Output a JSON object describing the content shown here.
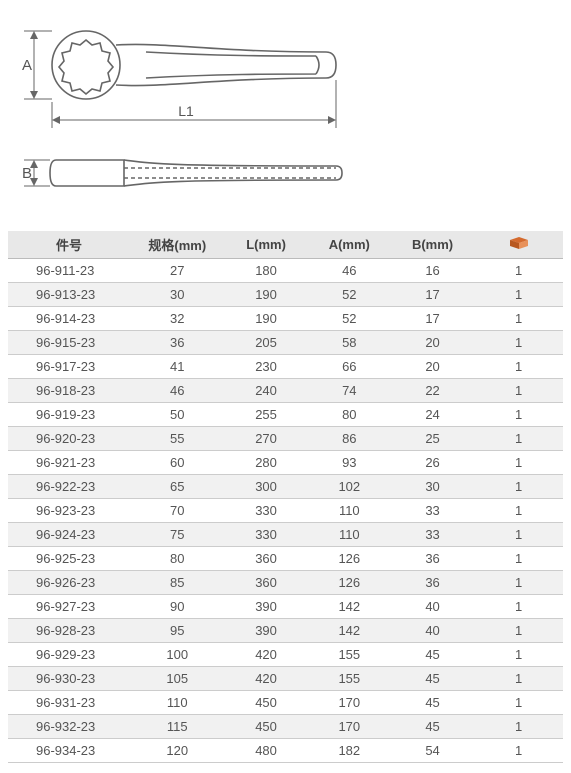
{
  "diagram": {
    "label_A": "A",
    "label_B": "B",
    "label_L1": "L1",
    "stroke": "#666666",
    "arrow": "#666666",
    "dash": "4,3"
  },
  "table": {
    "headers": {
      "part": "件号",
      "spec": "规格(mm)",
      "l": "L(mm)",
      "a": "A(mm)",
      "b": "B(mm)"
    },
    "pkg_icon_color": "#d46a2e",
    "rows": [
      {
        "part": "96-911-23",
        "spec": "27",
        "l": "180",
        "a": "46",
        "b": "16",
        "pkg": "1"
      },
      {
        "part": "96-913-23",
        "spec": "30",
        "l": "190",
        "a": "52",
        "b": "17",
        "pkg": "1"
      },
      {
        "part": "96-914-23",
        "spec": "32",
        "l": "190",
        "a": "52",
        "b": "17",
        "pkg": "1"
      },
      {
        "part": "96-915-23",
        "spec": "36",
        "l": "205",
        "a": "58",
        "b": "20",
        "pkg": "1"
      },
      {
        "part": "96-917-23",
        "spec": "41",
        "l": "230",
        "a": "66",
        "b": "20",
        "pkg": "1"
      },
      {
        "part": "96-918-23",
        "spec": "46",
        "l": "240",
        "a": "74",
        "b": "22",
        "pkg": "1"
      },
      {
        "part": "96-919-23",
        "spec": "50",
        "l": "255",
        "a": "80",
        "b": "24",
        "pkg": "1"
      },
      {
        "part": "96-920-23",
        "spec": "55",
        "l": "270",
        "a": "86",
        "b": "25",
        "pkg": "1"
      },
      {
        "part": "96-921-23",
        "spec": "60",
        "l": "280",
        "a": "93",
        "b": "26",
        "pkg": "1"
      },
      {
        "part": "96-922-23",
        "spec": "65",
        "l": "300",
        "a": "102",
        "b": "30",
        "pkg": "1"
      },
      {
        "part": "96-923-23",
        "spec": "70",
        "l": "330",
        "a": "110",
        "b": "33",
        "pkg": "1"
      },
      {
        "part": "96-924-23",
        "spec": "75",
        "l": "330",
        "a": "110",
        "b": "33",
        "pkg": "1"
      },
      {
        "part": "96-925-23",
        "spec": "80",
        "l": "360",
        "a": "126",
        "b": "36",
        "pkg": "1"
      },
      {
        "part": "96-926-23",
        "spec": "85",
        "l": "360",
        "a": "126",
        "b": "36",
        "pkg": "1"
      },
      {
        "part": "96-927-23",
        "spec": "90",
        "l": "390",
        "a": "142",
        "b": "40",
        "pkg": "1"
      },
      {
        "part": "96-928-23",
        "spec": "95",
        "l": "390",
        "a": "142",
        "b": "40",
        "pkg": "1"
      },
      {
        "part": "96-929-23",
        "spec": "100",
        "l": "420",
        "a": "155",
        "b": "45",
        "pkg": "1"
      },
      {
        "part": "96-930-23",
        "spec": "105",
        "l": "420",
        "a": "155",
        "b": "45",
        "pkg": "1"
      },
      {
        "part": "96-931-23",
        "spec": "110",
        "l": "450",
        "a": "170",
        "b": "45",
        "pkg": "1"
      },
      {
        "part": "96-932-23",
        "spec": "115",
        "l": "450",
        "a": "170",
        "b": "45",
        "pkg": "1"
      },
      {
        "part": "96-934-23",
        "spec": "120",
        "l": "480",
        "a": "182",
        "b": "54",
        "pkg": "1"
      }
    ]
  }
}
